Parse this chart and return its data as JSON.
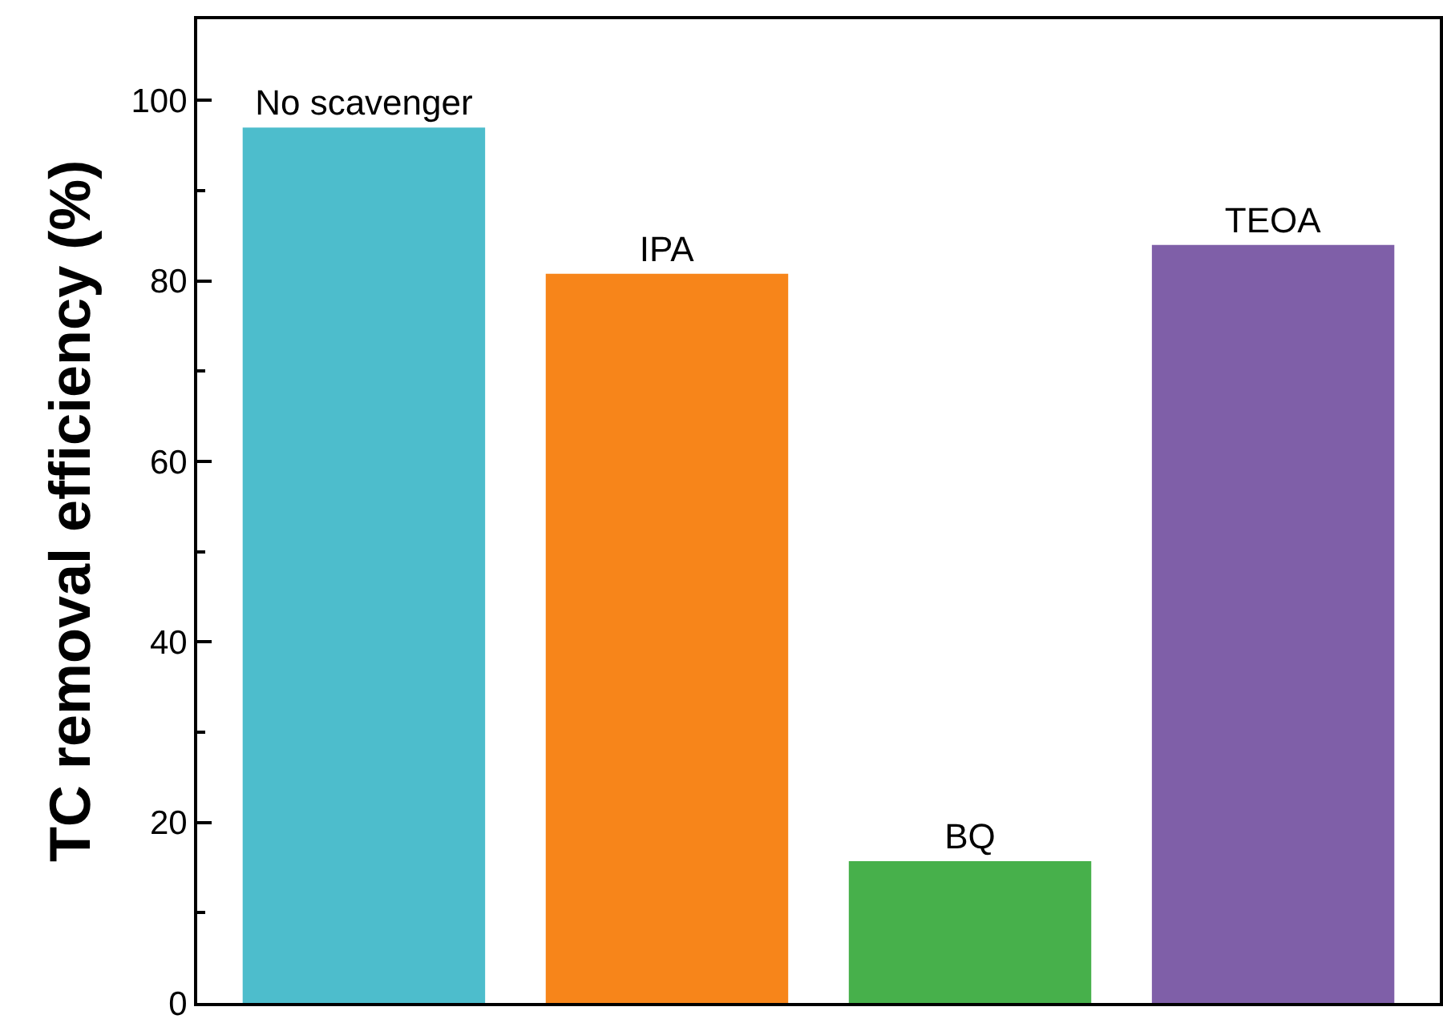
{
  "chart_data": {
    "type": "bar",
    "ylabel": "TC removal efficiency (%)",
    "categories": [
      "No scavenger",
      "IPA",
      "BQ",
      "TEOA"
    ],
    "values": [
      97.0,
      80.8,
      15.7,
      84.0
    ],
    "colors": [
      "#4dbdcc",
      "#f7851a",
      "#47b04b",
      "#7f5fa8"
    ],
    "ylim": [
      0,
      109
    ],
    "yticks": [
      0,
      20,
      40,
      60,
      80,
      100
    ],
    "grid": false,
    "tick_labels": "y"
  }
}
